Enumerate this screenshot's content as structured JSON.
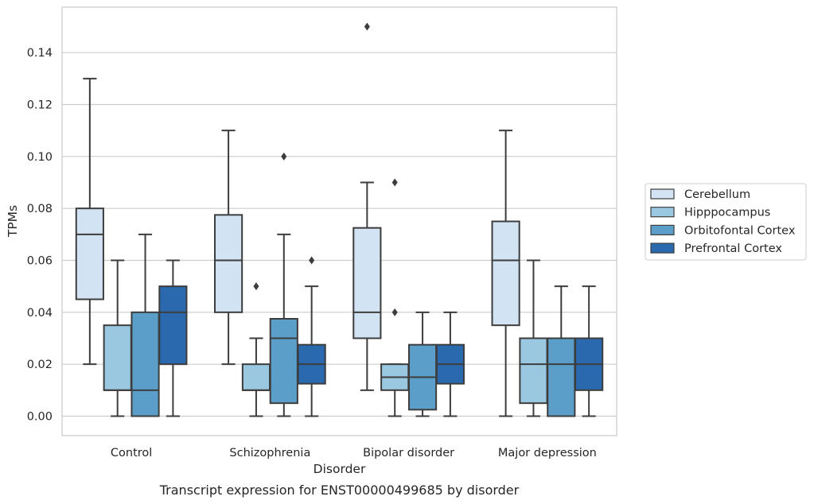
{
  "chart_data": {
    "type": "box",
    "title": "",
    "caption": "Transcript expression for ENST00000499685 by disorder",
    "xlabel": "Disorder",
    "ylabel": "TPMs",
    "categories": [
      "Control",
      "Schizophrenia",
      "Bipolar disorder",
      "Major depression"
    ],
    "ylim": [
      -0.0075,
      0.1575
    ],
    "yticks": [
      "0.00",
      "0.02",
      "0.04",
      "0.06",
      "0.08",
      "0.10",
      "0.12",
      "0.14"
    ],
    "grid": "horizontal",
    "legend_position": "right",
    "series": [
      {
        "name": "Cerebellum",
        "color": "#d2e3f3",
        "boxes": [
          {
            "whisker_low": 0.02,
            "q1": 0.045,
            "median": 0.07,
            "q3": 0.08,
            "whisker_high": 0.13,
            "outliers": []
          },
          {
            "whisker_low": 0.02,
            "q1": 0.04,
            "median": 0.06,
            "q3": 0.0775,
            "whisker_high": 0.11,
            "outliers": []
          },
          {
            "whisker_low": 0.01,
            "q1": 0.03,
            "median": 0.04,
            "q3": 0.0725,
            "whisker_high": 0.09,
            "outliers": [
              0.15
            ]
          },
          {
            "whisker_low": 0.0,
            "q1": 0.035,
            "median": 0.06,
            "q3": 0.075,
            "whisker_high": 0.11,
            "outliers": []
          }
        ]
      },
      {
        "name": "Hipppocampus",
        "color": "#9ac8e0",
        "boxes": [
          {
            "whisker_low": 0.0,
            "q1": 0.01,
            "median": 0.01,
            "q3": 0.035,
            "whisker_high": 0.06,
            "outliers": []
          },
          {
            "whisker_low": 0.0,
            "q1": 0.01,
            "median": 0.01,
            "q3": 0.02,
            "whisker_high": 0.03,
            "outliers": [
              0.05
            ]
          },
          {
            "whisker_low": 0.0,
            "q1": 0.01,
            "median": 0.015,
            "q3": 0.02,
            "whisker_high": 0.02,
            "outliers": [
              0.09,
              0.04
            ]
          },
          {
            "whisker_low": 0.0,
            "q1": 0.005,
            "median": 0.02,
            "q3": 0.03,
            "whisker_high": 0.06,
            "outliers": []
          }
        ]
      },
      {
        "name": "Orbitofontal Cortex",
        "color": "#5a9ec9",
        "boxes": [
          {
            "whisker_low": 0.0,
            "q1": 0.0,
            "median": 0.01,
            "q3": 0.04,
            "whisker_high": 0.07,
            "outliers": []
          },
          {
            "whisker_low": 0.0,
            "q1": 0.005,
            "median": 0.03,
            "q3": 0.0375,
            "whisker_high": 0.07,
            "outliers": [
              0.1
            ]
          },
          {
            "whisker_low": 0.0,
            "q1": 0.0025,
            "median": 0.015,
            "q3": 0.0275,
            "whisker_high": 0.04,
            "outliers": []
          },
          {
            "whisker_low": 0.0,
            "q1": 0.0,
            "median": 0.02,
            "q3": 0.03,
            "whisker_high": 0.05,
            "outliers": []
          }
        ]
      },
      {
        "name": "Prefrontal Cortex",
        "color": "#2a69ad",
        "boxes": [
          {
            "whisker_low": 0.0,
            "q1": 0.02,
            "median": 0.04,
            "q3": 0.05,
            "whisker_high": 0.06,
            "outliers": []
          },
          {
            "whisker_low": 0.0,
            "q1": 0.0125,
            "median": 0.02,
            "q3": 0.0275,
            "whisker_high": 0.05,
            "outliers": [
              0.06
            ]
          },
          {
            "whisker_low": 0.0,
            "q1": 0.0125,
            "median": 0.02,
            "q3": 0.0275,
            "whisker_high": 0.04,
            "outliers": []
          },
          {
            "whisker_low": 0.0,
            "q1": 0.01,
            "median": 0.02,
            "q3": 0.03,
            "whisker_high": 0.05,
            "outliers": []
          }
        ]
      }
    ]
  }
}
